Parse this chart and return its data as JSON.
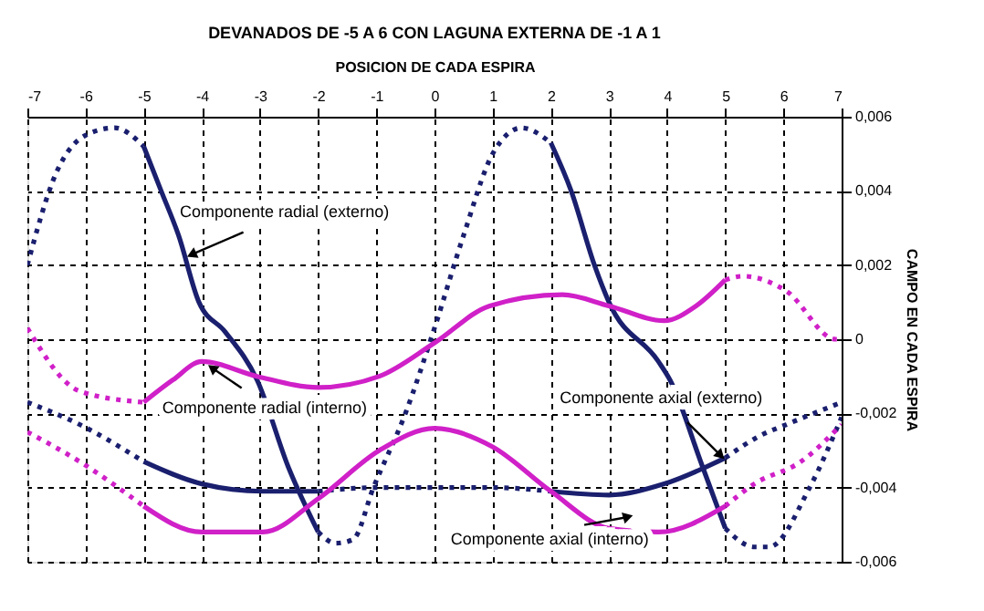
{
  "chart_data": {
    "type": "line",
    "title": "DEVANADOS DE -5 A 6 CON LAGUNA EXTERNA DE -1 A 1",
    "xlabel": "POSICION DE CADA ESPIRA",
    "ylabel": "CAMPO EN CADA ESPIRA",
    "xlim": [
      -7,
      7
    ],
    "xticks": [
      -7,
      -6,
      -5,
      -4,
      -3,
      -2,
      -1,
      0,
      1,
      2,
      3,
      4,
      5,
      6,
      7
    ],
    "ylim": [
      -0.006,
      0.006
    ],
    "yticks": [
      {
        "value": -0.006,
        "label": "-0,006"
      },
      {
        "value": -0.004,
        "label": "-0,004"
      },
      {
        "value": -0.002,
        "label": "-0,002"
      },
      0,
      {
        "value": 0.002,
        "label": "0,002"
      },
      {
        "value": 0.004,
        "label": "0,004"
      },
      {
        "value": 0.006,
        "label": "0,006"
      }
    ],
    "grid": true,
    "series": [
      {
        "color": "#1a1f6e",
        "line_style": "dotted",
        "x": [
          -7,
          -6.5,
          -6,
          -5.5,
          -5
        ],
        "values": [
          0.002,
          0.0045,
          0.0055,
          0.0057,
          0.0052
        ]
      },
      {
        "color": "#1a1f6e",
        "line_style": "solid",
        "x": [
          -5,
          -4.7,
          -4.4,
          -4.05,
          -3.6,
          -3.05,
          -2.5,
          -2
        ],
        "values": [
          0.0052,
          0.004,
          0.0028,
          0.001,
          0.0002,
          -0.0011,
          -0.0035,
          -0.0052
        ]
      },
      {
        "color": "#1a1f6e",
        "line_style": "dotted",
        "x": [
          -2,
          -1.7,
          -1.4,
          -1.05,
          -0.5,
          0,
          0.5,
          1,
          1.5,
          2
        ],
        "values": [
          -0.0052,
          -0.0055,
          -0.0054,
          -0.004,
          -0.002,
          0.0003,
          0.0028,
          0.005,
          0.0057,
          0.0053
        ]
      },
      {
        "color": "#1a1f6e",
        "line_style": "solid",
        "x": [
          2,
          2.35,
          2.75,
          3,
          3.85,
          4.05,
          4.6,
          5
        ],
        "values": [
          0.0053,
          0.004,
          0.002,
          0.001,
          -0.0006,
          -0.0011,
          -0.0034,
          -0.0051
        ]
      },
      {
        "color": "#1a1f6e",
        "line_style": "dotted",
        "x": [
          5,
          5.5,
          5.75,
          6.45,
          7
        ],
        "values": [
          -0.0051,
          -0.0056,
          -0.0056,
          -0.004,
          -0.0021
        ]
      },
      {
        "color": "#d020c8",
        "line_style": "dotted",
        "x": [
          -7,
          -6.1,
          -5
        ],
        "values": [
          0.0003,
          -0.0014,
          -0.0017
        ]
      },
      {
        "color": "#d020c8",
        "line_style": "solid",
        "x": [
          -5,
          -4.5,
          -4,
          -3.05,
          -2,
          -0.95,
          0,
          0.95,
          2.2,
          3,
          3.95,
          4.5,
          5
        ],
        "values": [
          -0.0017,
          -0.0011,
          -0.0006,
          -0.001,
          -0.0013,
          -0.001,
          -0.0001,
          0.0009,
          0.0012,
          0.0009,
          0.0005,
          0.0009,
          0.0016
        ]
      },
      {
        "color": "#d020c8",
        "line_style": "dotted",
        "x": [
          5,
          5.3,
          6.05,
          6.9,
          7
        ],
        "values": [
          0.0016,
          0.0017,
          0.0013,
          0,
          0
        ]
      },
      {
        "color": "#1a1f6e",
        "line_style": "dotted",
        "x": [
          -7,
          -6.1,
          -5
        ],
        "values": [
          -0.0017,
          -0.0023,
          -0.0033
        ]
      },
      {
        "color": "#1a1f6e",
        "line_style": "solid",
        "x": [
          -5,
          -4,
          -2.95,
          -2
        ],
        "values": [
          -0.0033,
          -0.0039,
          -0.0041,
          -0.0041
        ]
      },
      {
        "color": "#1a1f6e",
        "line_style": "dotted",
        "x": [
          -2,
          -1,
          0,
          1,
          2
        ],
        "values": [
          -0.0041,
          -0.004,
          -0.004,
          -0.004,
          -0.0041
        ]
      },
      {
        "color": "#1a1f6e",
        "line_style": "solid",
        "x": [
          2,
          3,
          3.95,
          5
        ],
        "values": [
          -0.0041,
          -0.0042,
          -0.0039,
          -0.0032
        ]
      },
      {
        "color": "#1a1f6e",
        "line_style": "dotted",
        "x": [
          5,
          5.6,
          6.05,
          7
        ],
        "values": [
          -0.0032,
          -0.0026,
          -0.0023,
          -0.0017
        ]
      },
      {
        "color": "#d020c8",
        "line_style": "dotted",
        "x": [
          -7,
          -6.1,
          -5
        ],
        "values": [
          -0.0025,
          -0.0033,
          -0.0045
        ]
      },
      {
        "color": "#d020c8",
        "line_style": "solid",
        "x": [
          -5,
          -4,
          -2.95,
          -2,
          -0.95,
          0,
          1,
          2,
          3,
          3.85,
          5
        ],
        "values": [
          -0.0045,
          -0.0052,
          -0.0052,
          -0.0043,
          -0.003,
          -0.0024,
          -0.0029,
          -0.0041,
          -0.0051,
          -0.0052,
          -0.0045
        ]
      },
      {
        "color": "#d020c8",
        "line_style": "dotted",
        "x": [
          5,
          5.5,
          6.3,
          7
        ],
        "values": [
          -0.0045,
          -0.0039,
          -0.0033,
          -0.0023
        ]
      }
    ],
    "annotations": [
      {
        "text": "Componente radial (externo)",
        "x": -4.15,
        "y": 0.0023
      },
      {
        "text": "Componente radial (interno)",
        "x": -3.8,
        "y": -0.0008
      },
      {
        "text": "Componente axial (externo)",
        "x": 4.9,
        "y": -0.0031
      },
      {
        "text": "Componente axial (interno)",
        "x": 3.3,
        "y": -0.0048
      }
    ]
  }
}
